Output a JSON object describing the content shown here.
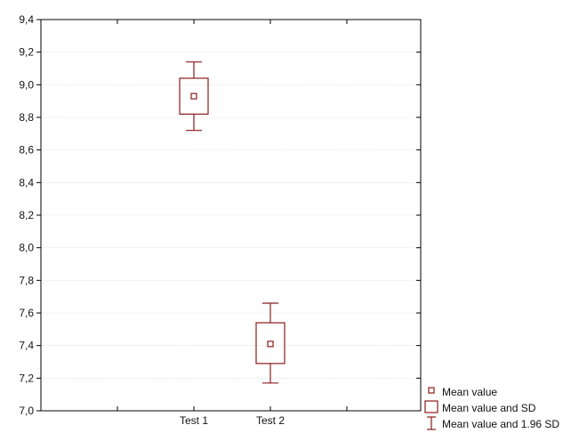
{
  "chart_data": {
    "type": "box",
    "title": "",
    "xlabel": "",
    "ylabel": "",
    "categories": [
      "Test 1",
      "Test 2"
    ],
    "ylim": [
      7.0,
      9.4
    ],
    "yticks": [
      "7,0",
      "7,2",
      "7,4",
      "7,6",
      "7,8",
      "8,0",
      "8,2",
      "8,4",
      "8,6",
      "8,8",
      "9,0",
      "9,2",
      "9,4"
    ],
    "grid": true,
    "legend_position": "bottom-right",
    "series": [
      {
        "category": "Test 1",
        "mean": 8.93,
        "sd_low": 8.82,
        "sd_high": 9.04,
        "ci_low": 8.72,
        "ci_high": 9.14
      },
      {
        "category": "Test 2",
        "mean": 7.41,
        "sd_low": 7.29,
        "sd_high": 7.54,
        "ci_low": 7.17,
        "ci_high": 7.66
      }
    ],
    "legend": [
      {
        "key": "mean",
        "label": "Mean value"
      },
      {
        "key": "sd",
        "label": "Mean value and SD"
      },
      {
        "key": "ci",
        "label": "Mean value and 1.96 SD"
      }
    ],
    "color": "#8b1a1a"
  }
}
